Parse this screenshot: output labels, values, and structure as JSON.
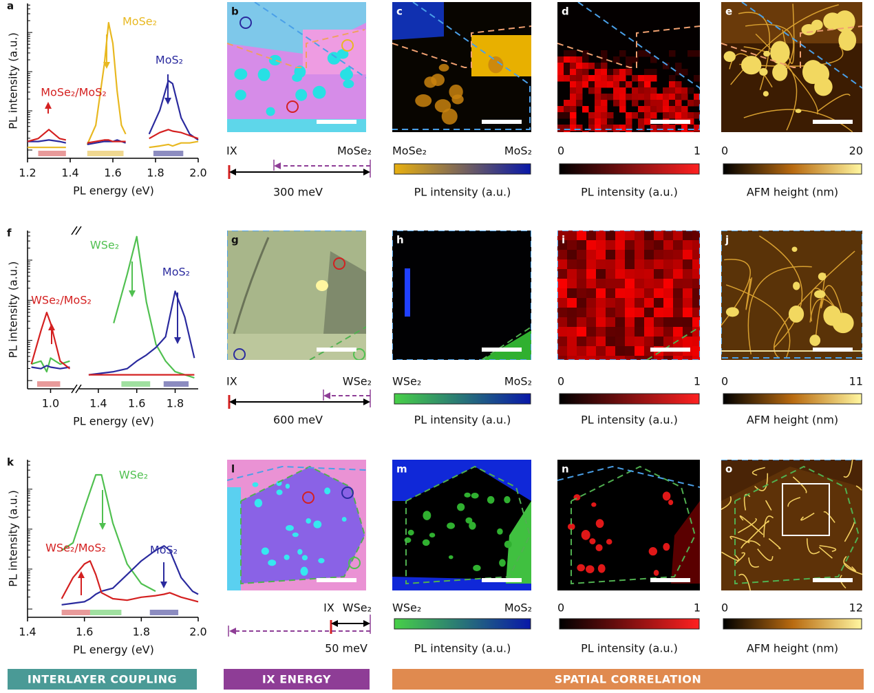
{
  "rows": [
    {
      "spectrum": {
        "letter": "a",
        "ylabel": "PL intensity (a.u.)",
        "xlabel": "PL energy (eV)",
        "xlim": [
          1.2,
          2.0
        ],
        "ylim": [
          0,
          102
        ],
        "xticks": [
          1.2,
          1.4,
          1.6,
          1.8,
          {
            "value": 2.0,
            "label": "2.0"
          }
        ],
        "x": [
          1.2,
          1.25,
          1.3,
          1.35,
          1.38,
          1.43,
          1.48,
          1.52,
          1.56,
          1.58,
          1.6,
          1.62,
          1.64,
          1.66,
          1.72,
          1.77,
          1.82,
          1.86,
          1.88,
          1.92,
          1.96,
          2.0
        ],
        "series": [
          {
            "name": "MoSe₂",
            "color": "#e8b820",
            "values": [
              5,
              5,
              5,
              5,
              5,
              null,
              7,
              20,
              61,
              89,
              75,
              43,
              20,
              14,
              null,
              5,
              6,
              7,
              6,
              8,
              8,
              9
            ]
          },
          {
            "name": "MoS₂",
            "color": "#2a2a9e",
            "values": [
              9,
              9,
              10,
              9,
              8,
              null,
              7,
              8,
              9,
              9,
              9,
              10,
              9,
              8,
              null,
              14,
              30,
              50,
              48,
              25,
              14,
              10
            ]
          },
          {
            "name": "MoSe₂/MoS₂",
            "color": "#d42020",
            "values": [
              9,
              11,
              17,
              11,
              10,
              null,
              8,
              9,
              10,
              10,
              9,
              9,
              9,
              9,
              null,
              11,
              15,
              17,
              16,
              15,
              13,
              11
            ]
          }
        ],
        "bands": [
          {
            "range": [
              1.25,
              1.38
            ],
            "color": "#e89a9a"
          },
          {
            "range": [
              1.48,
              1.65
            ],
            "color": "#f0d890"
          },
          {
            "range": [
              1.79,
              1.93
            ],
            "color": "#8c8cc0"
          }
        ]
      },
      "energy": {
        "left": "IX",
        "right": "MoSe₂",
        "gap": "300 meV"
      },
      "images": [
        {
          "letter": "b"
        },
        {
          "letter": "c",
          "colorbar": {
            "ends": [
              "MoSe₂",
              "MoS₂"
            ],
            "colors": [
              "#e8b010",
              "#0818a8"
            ],
            "label": "PL intensity (a.u.)"
          }
        },
        {
          "letter": "d",
          "colorbar": {
            "ends": [
              0,
              1
            ],
            "colors": [
              "#000000",
              "#ff2020"
            ],
            "label": "PL intensity (a.u.)"
          }
        },
        {
          "letter": "e",
          "colorbar": {
            "ends": [
              0,
              20
            ],
            "colors": [
              "#000000",
              "#b86a10",
              "#fff6a0"
            ],
            "label": "AFM height (nm)"
          }
        }
      ]
    },
    {
      "spectrum": {
        "letter": "f",
        "ylabel": "PL intensity (a.u.)",
        "xlabel": "PL energy (eV)",
        "xlim": [
          [
            0.88,
            1.12
          ],
          [
            1.3,
            1.92
          ]
        ],
        "ylim": [
          0,
          102
        ],
        "xticks": [
          {
            "value": 1.0,
            "label": "1.0"
          },
          1.4,
          1.6,
          1.8
        ],
        "x": [
          0.9,
          0.95,
          0.98,
          1.0,
          1.05,
          1.1,
          1.2,
          1.35,
          1.48,
          1.55,
          1.6,
          1.65,
          1.7,
          1.75,
          1.8,
          1.85,
          1.9
        ],
        "series": [
          {
            "name": "WSe₂",
            "color": "#50c050",
            "values": [
              14,
              16,
              9,
              18,
              14,
              16,
              null,
              null,
              41,
              73,
              98,
              55,
              27,
              16,
              9,
              7,
              5
            ]
          },
          {
            "name": "MoS₂",
            "color": "#2a2a9e",
            "values": [
              12,
              11,
              13,
              12,
              11,
              12,
              null,
              7,
              9,
              11,
              16,
              20,
              25,
              32,
              62,
              45,
              18
            ]
          },
          {
            "name": "WSe₂/MoS₂",
            "color": "#d42020",
            "values": [
              14,
              36,
              48,
              41,
              16,
              11,
              null,
              7,
              7,
              7,
              7,
              7,
              7,
              7,
              7,
              7,
              7
            ]
          }
        ],
        "bands": [
          {
            "range": [
              0.93,
              1.05
            ],
            "color": "#e89a9a"
          },
          {
            "range": [
              1.52,
              1.67
            ],
            "color": "#a0e0a0"
          },
          {
            "range": [
              1.74,
              1.87
            ],
            "color": "#8c8cc0"
          }
        ]
      },
      "energy": {
        "left": "IX",
        "right": "WSe₂",
        "gap": "600 meV"
      },
      "images": [
        {
          "letter": "g"
        },
        {
          "letter": "h",
          "colorbar": {
            "ends": [
              "WSe₂",
              "MoS₂"
            ],
            "colors": [
              "#48d048",
              "#0818a8"
            ],
            "label": "PL intensity (a.u.)"
          }
        },
        {
          "letter": "i",
          "colorbar": {
            "ends": [
              0,
              1
            ],
            "colors": [
              "#000000",
              "#ff2020"
            ],
            "label": "PL intensity (a.u.)"
          }
        },
        {
          "letter": "j",
          "colorbar": {
            "ends": [
              0,
              11
            ],
            "colors": [
              "#000000",
              "#b86a10",
              "#fff6a0"
            ],
            "label": "AFM height (nm)"
          }
        }
      ]
    },
    {
      "spectrum": {
        "letter": "k",
        "ylabel": "PL intensity (a.u.)",
        "xlabel": "PL energy (eV)",
        "xlim": [
          1.4,
          2.0
        ],
        "ylim": [
          0,
          102
        ],
        "xticks": [
          1.4,
          1.6,
          1.8,
          {
            "value": 2.0,
            "label": "2.0"
          }
        ],
        "x": [
          1.52,
          1.56,
          1.6,
          1.62,
          1.64,
          1.66,
          1.7,
          1.75,
          1.8,
          1.85,
          1.88,
          1.9,
          1.94,
          1.98,
          2.0
        ],
        "series": [
          {
            "name": "WSe₂",
            "color": "#50c050",
            "values": [
              42,
              47,
              70,
              81,
              92,
              92,
              60,
              33,
              20,
              15,
              null,
              null,
              null,
              null,
              null
            ]
          },
          {
            "name": "MoS₂",
            "color": "#2a2a9e",
            "values": [
              6,
              7,
              8,
              10,
              13,
              15,
              17,
              26,
              35,
              42,
              45,
              42,
              24,
              15,
              13
            ]
          },
          {
            "name": "WSe₂/MoS₂",
            "color": "#d42020",
            "values": [
              10,
              24,
              33,
              35,
              26,
              14,
              10,
              9,
              11,
              12,
              13,
              14,
              11,
              9,
              8
            ]
          }
        ],
        "bands": [
          {
            "range": [
              1.52,
              1.62
            ],
            "color": "#e89a9a"
          },
          {
            "range": [
              1.62,
              1.73
            ],
            "color": "#a0e0a0"
          },
          {
            "range": [
              1.83,
              1.93
            ],
            "color": "#8c8cc0"
          }
        ]
      },
      "energy": {
        "left": "IX",
        "right": "WSe₂",
        "gap": "50 meV"
      },
      "images": [
        {
          "letter": "l"
        },
        {
          "letter": "m",
          "colorbar": {
            "ends": [
              "WSe₂",
              "MoS₂"
            ],
            "colors": [
              "#48d048",
              "#0818a8"
            ],
            "label": "PL intensity (a.u.)"
          }
        },
        {
          "letter": "n",
          "colorbar": {
            "ends": [
              0,
              1
            ],
            "colors": [
              "#000000",
              "#ff2020"
            ],
            "label": "PL intensity (a.u.)"
          }
        },
        {
          "letter": "o",
          "colorbar": {
            "ends": [
              0,
              12
            ],
            "colors": [
              "#000000",
              "#b86a10",
              "#fff6a0"
            ],
            "label": "AFM height (nm)"
          }
        }
      ]
    }
  ],
  "sections": [
    {
      "text": "INTERLAYER COUPLING",
      "color": "#4a9a96"
    },
    {
      "text": "IX ENERGY",
      "color": "#8e3d96"
    },
    {
      "text": "SPATIAL CORRELATION",
      "color": "#e08a4f"
    }
  ]
}
